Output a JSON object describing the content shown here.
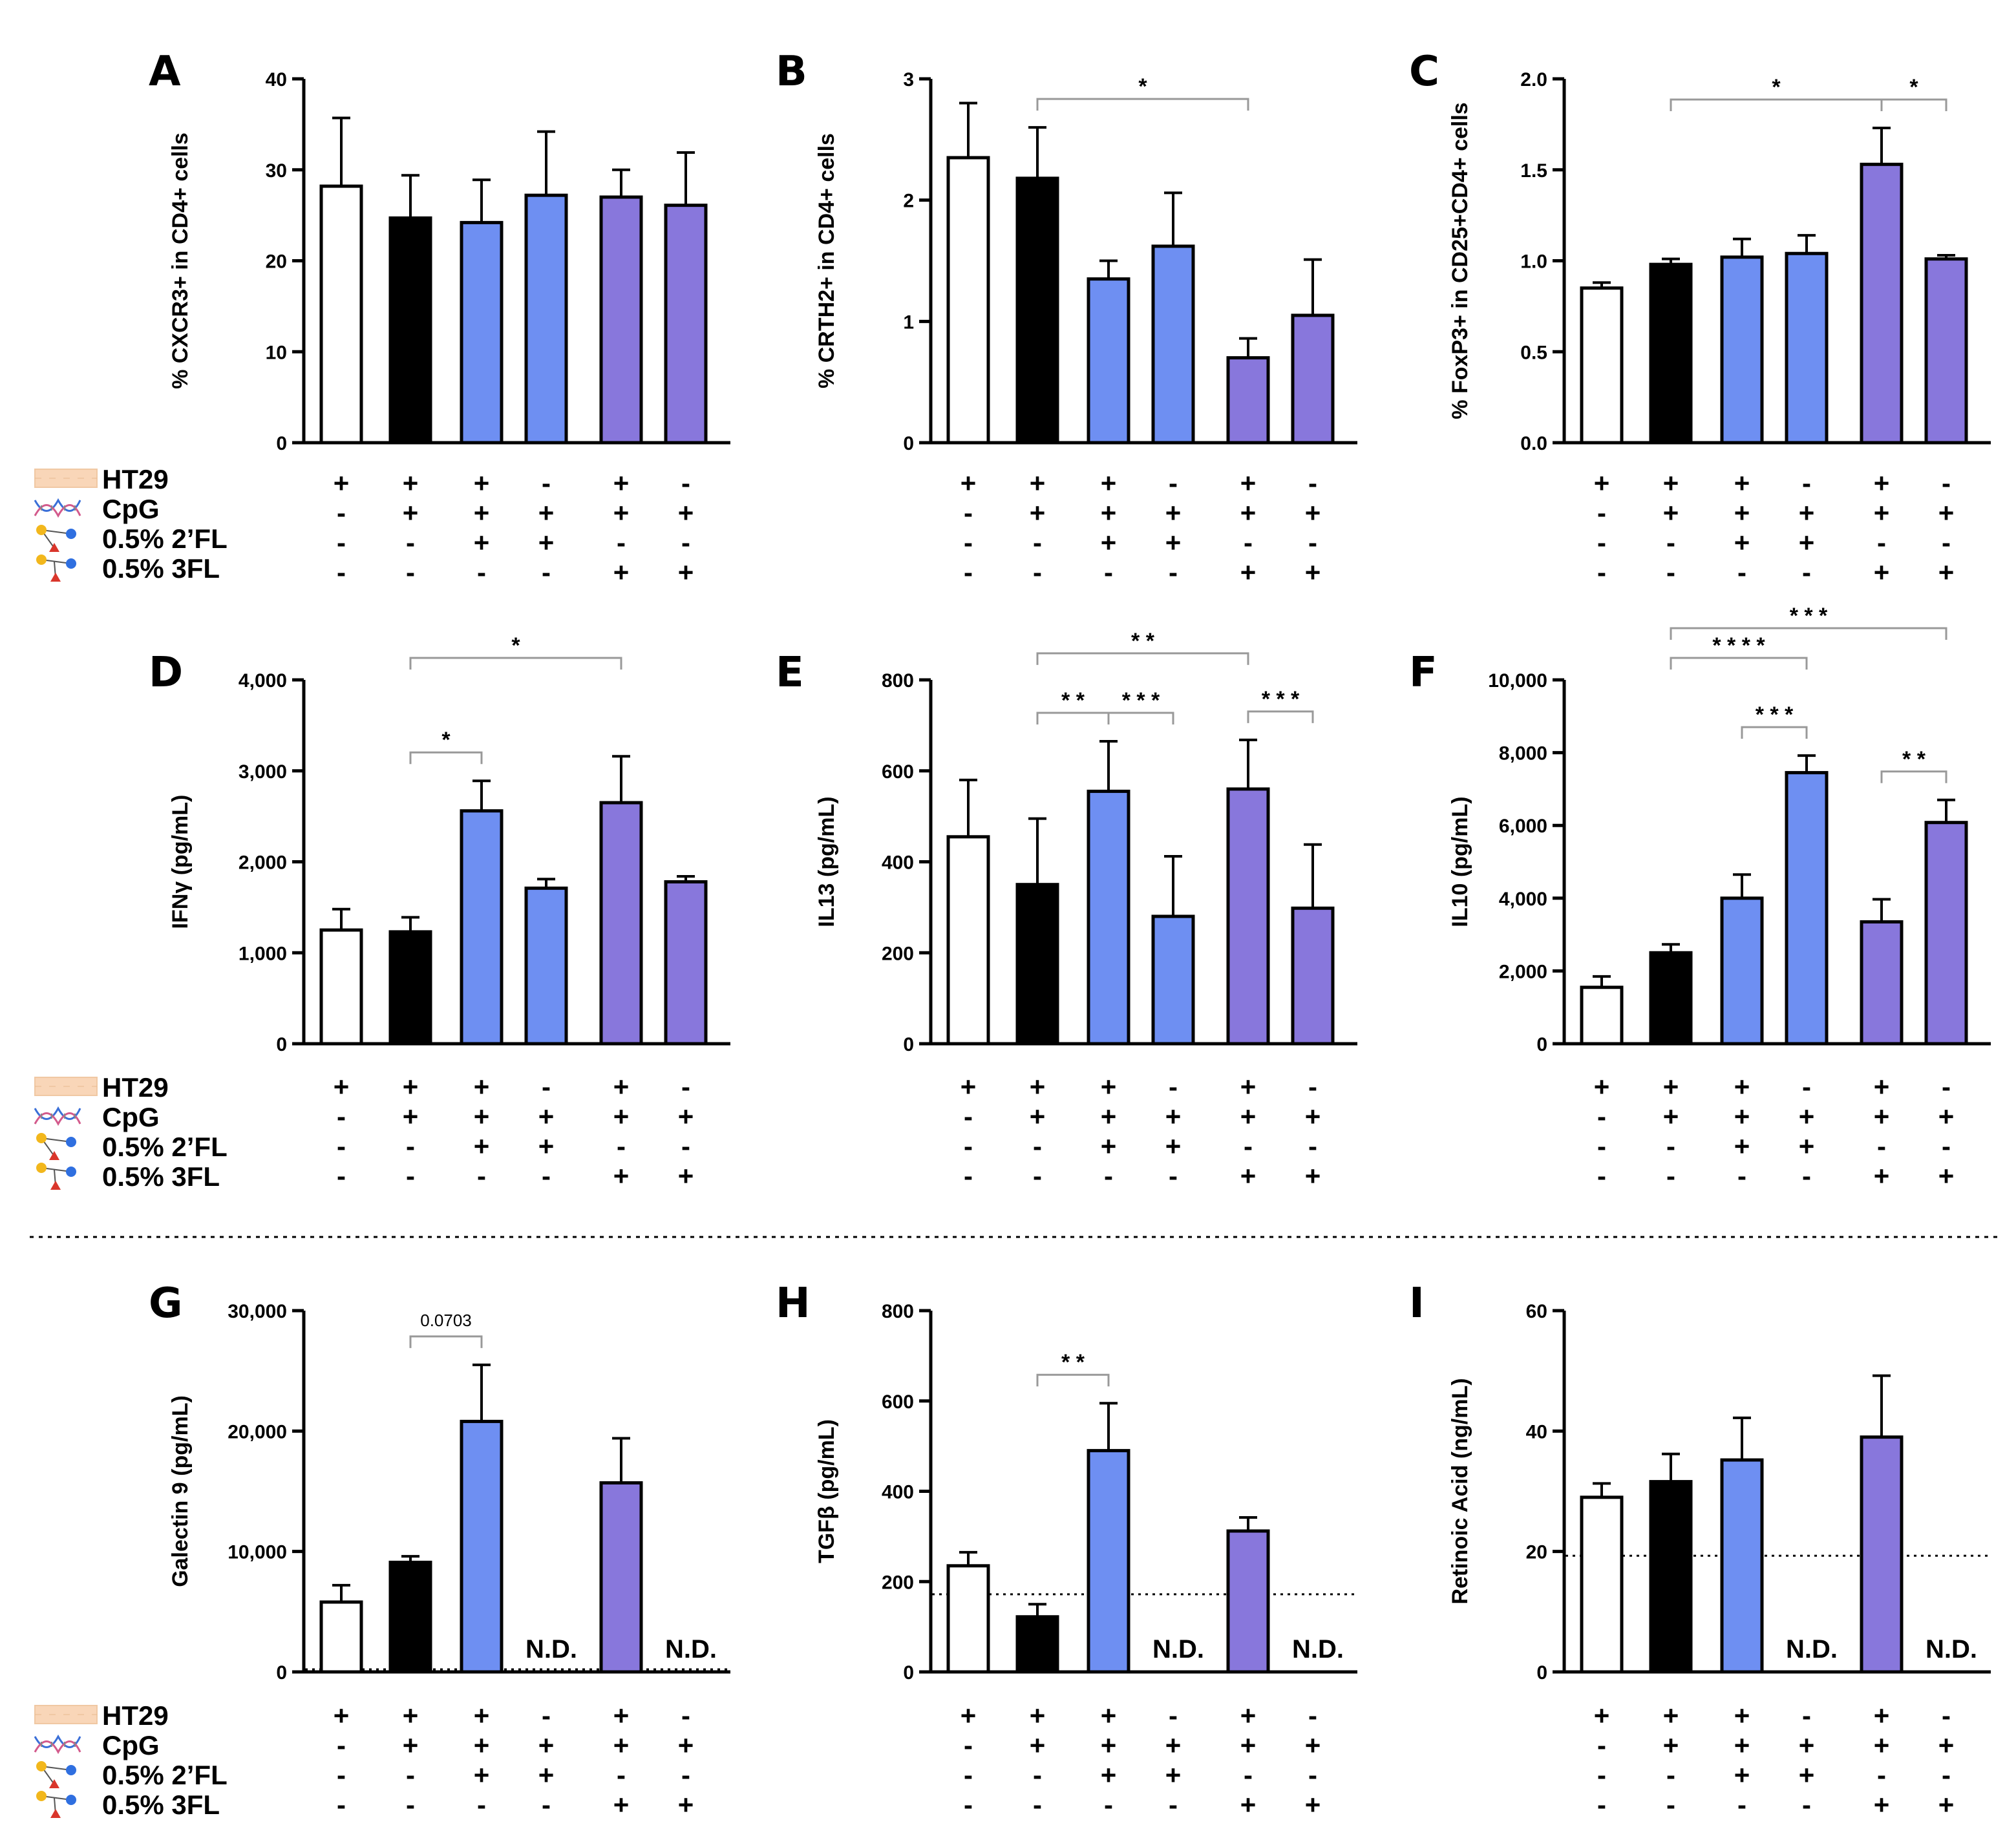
{
  "legend": {
    "rows": [
      {
        "label": "HT29",
        "icon": "cell-layer-icon"
      },
      {
        "label": "CpG",
        "icon": "dna-icon"
      },
      {
        "label": "0.5% 2’FL",
        "icon": "glycan-2fl-icon"
      },
      {
        "label": "0.5% 3FL",
        "icon": "glycan-3fl-icon"
      }
    ]
  },
  "treatment_matrix": [
    [
      "+",
      "+",
      "+",
      "-",
      "+",
      "-"
    ],
    [
      "-",
      "+",
      "+",
      "+",
      "+",
      "+"
    ],
    [
      "-",
      "-",
      "+",
      "+",
      "-",
      "-"
    ],
    [
      "-",
      "-",
      "-",
      "-",
      "+",
      "+"
    ]
  ],
  "colors": {
    "bars": [
      "#ffffff",
      "#000000",
      "#6e8ff2",
      "#6e8ff2",
      "#8877dc",
      "#8877dc"
    ],
    "axis": "#000000",
    "bracket": "#999999",
    "detection_limit": "#000000"
  },
  "nd_label": "N.D.",
  "chart_data": [
    {
      "type": "bar",
      "panel": "A",
      "ylabel": "% CXCR3+ in CD4+ cells",
      "ylim": [
        0,
        40
      ],
      "ticks": [
        "0",
        "10",
        "20",
        "30",
        "40"
      ],
      "values": [
        28.2,
        24.7,
        24.2,
        27.2,
        27.0,
        26.1
      ],
      "errors": [
        7.5,
        4.7,
        4.7,
        7.0,
        3.0,
        5.8
      ],
      "nd": [
        false,
        false,
        false,
        false,
        false,
        false
      ],
      "brackets": [],
      "detection_limit": null
    },
    {
      "type": "bar",
      "panel": "B",
      "ylabel": "% CRTH2+ in CD4+ cells",
      "ylim": [
        0,
        3
      ],
      "ticks": [
        "0",
        "1",
        "2",
        "3"
      ],
      "values": [
        2.35,
        2.18,
        1.35,
        1.62,
        0.7,
        1.05
      ],
      "errors": [
        0.45,
        0.42,
        0.15,
        0.44,
        0.16,
        0.46
      ],
      "nd": [
        false,
        false,
        false,
        false,
        false,
        false
      ],
      "brackets": [
        {
          "from": 1,
          "to": 4,
          "label": "*",
          "level": 0
        }
      ],
      "detection_limit": null
    },
    {
      "type": "bar",
      "panel": "C",
      "ylabel": "% FoxP3+ in CD25+CD4+ cells",
      "ylim": [
        0,
        2
      ],
      "ticks": [
        "0.0",
        "0.5",
        "1.0",
        "1.5",
        "2.0"
      ],
      "values": [
        0.85,
        0.98,
        1.02,
        1.04,
        1.53,
        1.01
      ],
      "errors": [
        0.03,
        0.03,
        0.1,
        0.1,
        0.2,
        0.02
      ],
      "nd": [
        false,
        false,
        false,
        false,
        false,
        false
      ],
      "brackets": [
        {
          "from": 1,
          "to": 4,
          "label": "*",
          "level": 0
        },
        {
          "from": 4,
          "to": 5,
          "label": "*",
          "level": 0
        }
      ],
      "detection_limit": null
    },
    {
      "type": "bar",
      "panel": "D",
      "ylabel": "IFNγ (pg/mL)",
      "ylim": [
        0,
        4000
      ],
      "ticks": [
        "0",
        "1,000",
        "2,000",
        "3,000",
        "4,000"
      ],
      "values": [
        1250,
        1230,
        2560,
        1710,
        2650,
        1780
      ],
      "errors": [
        230,
        160,
        330,
        100,
        510,
        60
      ],
      "nd": [
        false,
        false,
        false,
        false,
        false,
        false
      ],
      "brackets": [
        {
          "from": 1,
          "to": 2,
          "label": "*",
          "level": 0
        },
        {
          "from": 1,
          "to": 4,
          "label": "*",
          "level": 1
        }
      ],
      "detection_limit": null
    },
    {
      "type": "bar",
      "panel": "E",
      "ylabel": "IL13 (pg/mL)",
      "ylim": [
        0,
        800
      ],
      "ticks": [
        "0",
        "200",
        "400",
        "600",
        "800"
      ],
      "values": [
        455,
        350,
        555,
        280,
        560,
        298
      ],
      "errors": [
        125,
        145,
        110,
        132,
        108,
        140
      ],
      "nd": [
        false,
        false,
        false,
        false,
        false,
        false
      ],
      "brackets": [
        {
          "from": 1,
          "to": 2,
          "label": "* *",
          "level": 0
        },
        {
          "from": 2,
          "to": 3,
          "label": "* * *",
          "level": 0
        },
        {
          "from": 4,
          "to": 5,
          "label": "* * *",
          "level": 0
        },
        {
          "from": 1,
          "to": 4,
          "label": "* *",
          "level": 1
        }
      ],
      "detection_limit": null
    },
    {
      "type": "bar",
      "panel": "F",
      "ylabel": "IL10 (pg/mL)",
      "ylim": [
        0,
        10000
      ],
      "ticks": [
        "0",
        "2,000",
        "4,000",
        "6,000",
        "8,000",
        "10,000"
      ],
      "values": [
        1550,
        2500,
        4000,
        7450,
        3350,
        6080
      ],
      "errors": [
        300,
        230,
        650,
        470,
        620,
        620
      ],
      "nd": [
        false,
        false,
        false,
        false,
        false,
        false
      ],
      "brackets": [
        {
          "from": 2,
          "to": 3,
          "label": "* * *",
          "level": 0
        },
        {
          "from": 4,
          "to": 5,
          "label": "* *",
          "level": 0
        },
        {
          "from": 1,
          "to": 3,
          "label": "* * * *",
          "level": 1
        },
        {
          "from": 1,
          "to": 5,
          "label": "* * *",
          "level": 2
        }
      ],
      "detection_limit": null
    },
    {
      "type": "bar",
      "panel": "G",
      "ylabel": "Galectin 9 (pg/mL)",
      "ylim": [
        0,
        30000
      ],
      "ticks": [
        "0",
        "10,000",
        "20,000",
        "30,000"
      ],
      "values": [
        5800,
        9100,
        20800,
        0,
        15700,
        0
      ],
      "errors": [
        1400,
        500,
        4700,
        0,
        3700,
        0
      ],
      "nd": [
        false,
        false,
        false,
        true,
        false,
        true
      ],
      "brackets": [
        {
          "from": 1,
          "to": 2,
          "label": "0.0703",
          "level": 0,
          "small": true
        }
      ],
      "detection_limit": 0
    },
    {
      "type": "bar",
      "panel": "H",
      "ylabel": "TGFβ (pg/mL)",
      "ylim": [
        0,
        800
      ],
      "ticks": [
        "0",
        "200",
        "400",
        "600",
        "800"
      ],
      "values": [
        235,
        122,
        490,
        0,
        312,
        0
      ],
      "errors": [
        30,
        28,
        105,
        0,
        30,
        0
      ],
      "nd": [
        false,
        false,
        false,
        true,
        false,
        true
      ],
      "brackets": [
        {
          "from": 1,
          "to": 2,
          "label": "* *",
          "level": 0
        }
      ],
      "detection_limit": 172
    },
    {
      "type": "bar",
      "panel": "I",
      "ylabel": "Retinoic Acid (ng/mL)",
      "ylim": [
        0,
        60
      ],
      "ticks": [
        "0",
        "20",
        "40",
        "60"
      ],
      "values": [
        29,
        31.6,
        35.2,
        0,
        39,
        0
      ],
      "errors": [
        2.3,
        4.6,
        7.0,
        0,
        10.2,
        0
      ],
      "nd": [
        false,
        false,
        false,
        true,
        false,
        true
      ],
      "brackets": [],
      "detection_limit": 19.3
    }
  ]
}
